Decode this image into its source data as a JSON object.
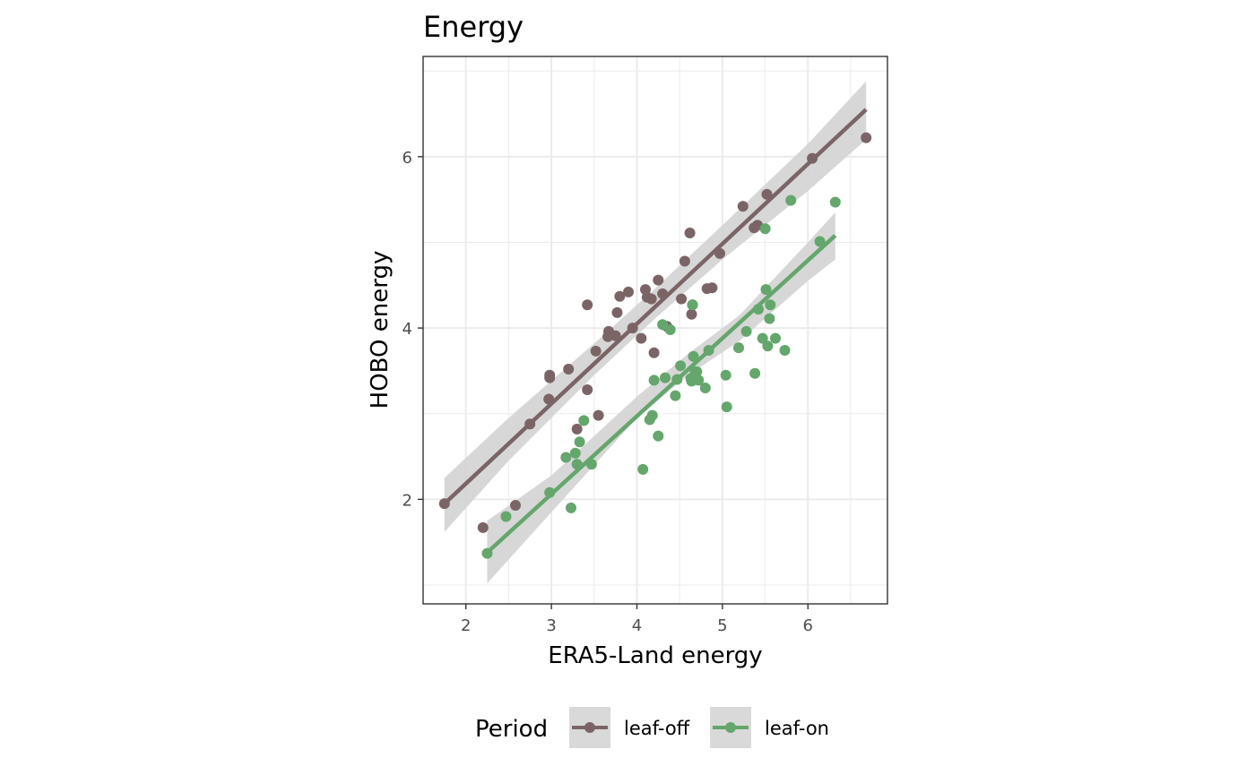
{
  "chart_data": {
    "type": "scatter",
    "title": "Energy",
    "xlabel": "ERA5-Land energy",
    "ylabel": "HOBO energy",
    "xlim": [
      1.5,
      6.93
    ],
    "ylim": [
      0.78,
      7.17
    ],
    "xticks": [
      2,
      3,
      4,
      5,
      6
    ],
    "yticks": [
      2,
      4,
      6
    ],
    "grid": true,
    "legend": {
      "title": "Period",
      "placement": "bottom",
      "entries": [
        "leaf-off",
        "leaf-on"
      ]
    },
    "series": [
      {
        "name": "leaf-off",
        "color": "#7b6466",
        "trend": {
          "x": [
            1.75,
            6.68
          ],
          "y": [
            1.95,
            6.55
          ]
        },
        "band_x": [
          1.75,
          2.5,
          3.5,
          4.2,
          5.0,
          6.0,
          6.68
        ],
        "band_lo": [
          1.62,
          2.45,
          3.45,
          4.1,
          4.8,
          5.6,
          6.2
        ],
        "band_hi": [
          2.25,
          2.95,
          3.82,
          4.45,
          5.2,
          6.15,
          6.88
        ],
        "x": [
          1.75,
          2.2,
          2.58,
          2.75,
          2.97,
          2.98,
          2.98,
          3.2,
          3.3,
          3.42,
          3.42,
          3.52,
          3.55,
          3.66,
          3.67,
          3.75,
          3.77,
          3.8,
          3.9,
          3.95,
          4.05,
          4.1,
          4.12,
          4.17,
          4.2,
          4.25,
          4.3,
          4.35,
          4.52,
          4.56,
          4.62,
          4.64,
          4.65,
          4.82,
          4.88,
          4.97,
          5.24,
          5.37,
          5.41,
          5.52,
          6.05,
          6.68
        ],
        "y": [
          1.95,
          1.67,
          1.93,
          2.88,
          3.17,
          3.42,
          3.45,
          3.52,
          2.82,
          3.28,
          4.27,
          3.73,
          2.98,
          3.9,
          3.96,
          3.91,
          4.18,
          4.37,
          4.42,
          4.0,
          3.88,
          4.45,
          4.36,
          4.34,
          3.71,
          4.56,
          4.4,
          4.02,
          4.34,
          4.78,
          5.11,
          4.16,
          4.27,
          4.46,
          4.47,
          4.87,
          5.42,
          5.17,
          5.2,
          5.56,
          5.98,
          6.22
        ]
      },
      {
        "name": "leaf-on",
        "color": "#64a66c",
        "trend": {
          "x": [
            2.25,
            6.32
          ],
          "y": [
            1.38,
            5.08
          ]
        },
        "band_x": [
          2.25,
          3.0,
          4.0,
          4.6,
          5.2,
          6.0,
          6.32
        ],
        "band_lo": [
          1.02,
          1.85,
          2.95,
          3.45,
          3.85,
          4.55,
          4.8
        ],
        "band_hi": [
          1.75,
          2.28,
          3.2,
          3.7,
          4.15,
          5.0,
          5.35
        ],
        "x": [
          2.25,
          2.47,
          2.98,
          3.17,
          3.23,
          3.28,
          3.3,
          3.33,
          3.38,
          3.47,
          4.07,
          4.15,
          4.18,
          4.2,
          4.25,
          4.3,
          4.33,
          4.39,
          4.45,
          4.47,
          4.51,
          4.63,
          4.64,
          4.65,
          4.66,
          4.68,
          4.7,
          4.72,
          4.8,
          4.84,
          5.04,
          5.05,
          5.19,
          5.28,
          5.38,
          5.42,
          5.47,
          5.5,
          5.51,
          5.53,
          5.55,
          5.56,
          5.62,
          5.73,
          5.8,
          6.14,
          6.32
        ],
        "y": [
          1.37,
          1.8,
          2.08,
          2.49,
          1.9,
          2.54,
          2.41,
          2.67,
          2.92,
          2.41,
          2.35,
          2.93,
          2.98,
          3.39,
          2.74,
          4.04,
          3.42,
          3.98,
          3.21,
          3.4,
          3.56,
          3.41,
          3.38,
          4.27,
          3.67,
          3.49,
          3.49,
          3.39,
          3.3,
          3.74,
          3.45,
          3.08,
          3.77,
          3.96,
          3.47,
          4.22,
          3.88,
          5.16,
          4.45,
          3.79,
          4.11,
          4.27,
          3.88,
          3.74,
          5.49,
          5.01,
          5.47
        ]
      }
    ]
  },
  "colors": {
    "band": "#d3d3d3",
    "grid": "#ebebeb",
    "panel_border": "#333333",
    "legend_key_bg": "#d9d9d9"
  }
}
